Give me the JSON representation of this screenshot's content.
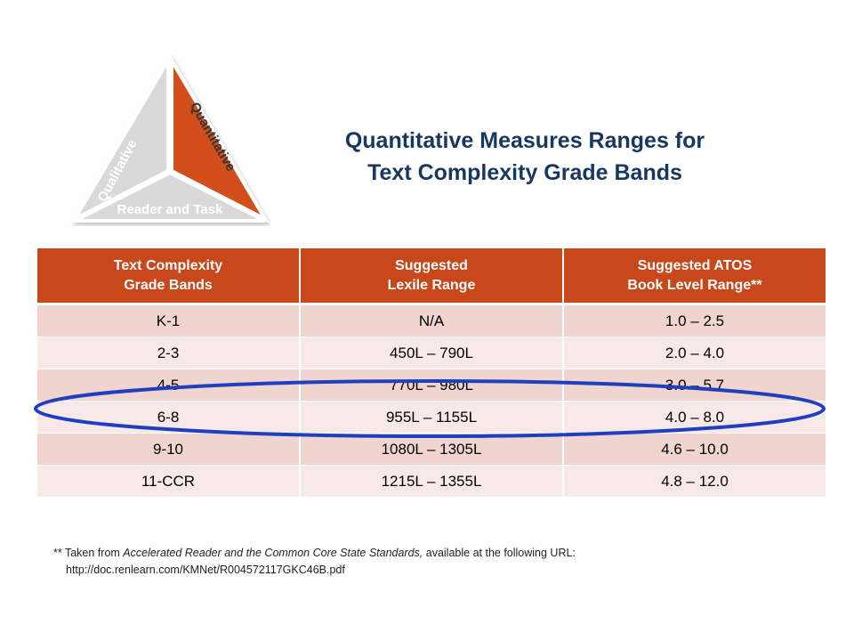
{
  "logo": {
    "qualitative": "Qualitative",
    "quantitative": "Quantitative",
    "reader_task": "Reader and Task",
    "colors": {
      "gray": "#d9d9d9",
      "orange": "#d24f1e"
    }
  },
  "title": {
    "line1": "Quantitative Measures Ranges for",
    "line2": "Text Complexity Grade Bands"
  },
  "table": {
    "headers": [
      {
        "line1": "Text Complexity",
        "line2": "Grade Bands"
      },
      {
        "line1": "Suggested",
        "line2": "Lexile Range"
      },
      {
        "line1": "Suggested ATOS",
        "line2": "Book Level Range**"
      }
    ],
    "rows": [
      {
        "grade": "K-1",
        "lexile": "N/A",
        "atos": "1.0 – 2.5"
      },
      {
        "grade": "2-3",
        "lexile": "450L – 790L",
        "atos": "2.0 – 4.0"
      },
      {
        "grade": "4-5",
        "lexile": "770L – 980L",
        "atos": "3.0 – 5.7"
      },
      {
        "grade": "6-8",
        "lexile": "955L – 1155L",
        "atos": "4.0 – 8.0"
      },
      {
        "grade": "9-10",
        "lexile": "1080L – 1305L",
        "atos": "4.6 – 10.0"
      },
      {
        "grade": "11-CCR",
        "lexile": "1215L – 1355L",
        "atos": "4.8 – 12.0"
      }
    ],
    "colors": {
      "header": "#c8471b",
      "row_dark": "#efd4d0",
      "row_light": "#f6e9e7",
      "highlight": "#1f3fbf"
    }
  },
  "footnote": {
    "prefix": "** Taken from ",
    "source_title": "Accelerated Reader and the Common Core State Standards,",
    "suffix": " available at the following URL:",
    "url": "http://doc.renlearn.com/KMNet/R004572117GKC46B.pdf"
  }
}
